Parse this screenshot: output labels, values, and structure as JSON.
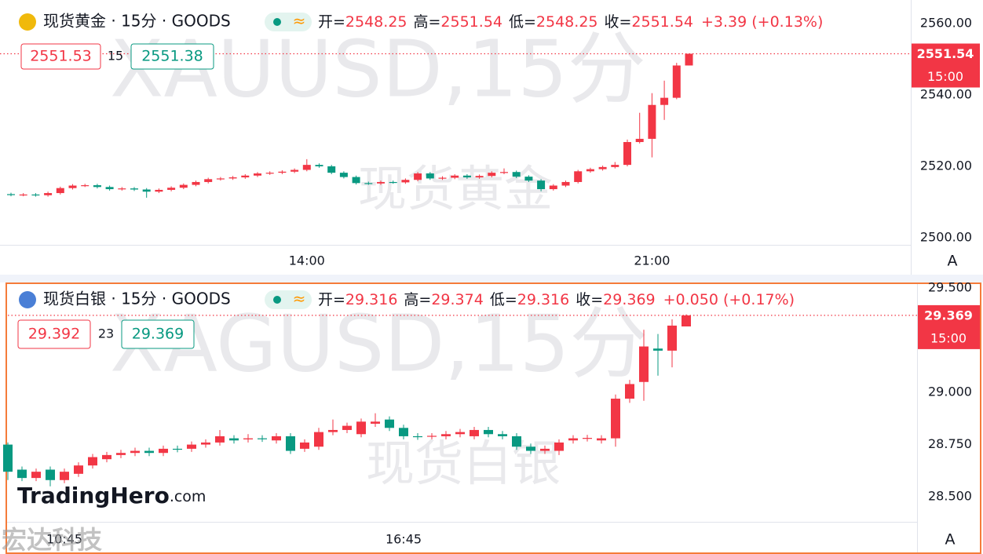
{
  "chart_data": [
    {
      "type": "candlestick",
      "title": "现货黄金 · 15分 · GOODS",
      "badge": "≈",
      "ohlc_labels": [
        "开=",
        "高=",
        "低=",
        "收="
      ],
      "change_label": "+3.39 (+0.13%)",
      "bid": 2551.53,
      "spread": 15,
      "ask": 2551.38,
      "watermark": "XAUUSD,15分",
      "watermark_sub": "现货黄金",
      "countdown": "15:00",
      "scale_button": "A",
      "up_color": "#f23645",
      "down_color": "#089981",
      "ylim": [
        2498.0,
        2566.6
      ],
      "yticks": [
        {
          "value": 2560,
          "label": "2560.00"
        },
        {
          "value": 2540,
          "label": "2540.00"
        },
        {
          "value": 2520,
          "label": "2520.00"
        },
        {
          "value": 2500,
          "label": "2500.00"
        }
      ],
      "categories": [
        null,
        null,
        null,
        null,
        null,
        null,
        null,
        null,
        null,
        null,
        null,
        null,
        null,
        null,
        null,
        null,
        null,
        null,
        null,
        null,
        null,
        null,
        null,
        null,
        "14:00",
        null,
        null,
        null,
        null,
        null,
        null,
        null,
        null,
        null,
        null,
        null,
        null,
        null,
        null,
        null,
        null,
        null,
        null,
        null,
        null,
        null,
        null,
        null,
        null,
        null,
        null,
        null,
        "21:00",
        null,
        null,
        null
      ],
      "open": [
        2512.2,
        2512.0,
        2512.1,
        2511.9,
        2512.5,
        2513.9,
        2514.6,
        2514.7,
        2514.2,
        2513.6,
        2513.8,
        2513.5,
        2512.9,
        2513.4,
        2514.0,
        2514.8,
        2515.6,
        2516.4,
        2516.6,
        2516.9,
        2517.4,
        2518.0,
        2518.2,
        2518.5,
        2519.0,
        2520.4,
        2520.0,
        2518.2,
        2517.0,
        2515.3,
        2515.2,
        2515.6,
        2515.5,
        2516.2,
        2518.0,
        2516.6,
        2516.8,
        2517.4,
        2516.9,
        2517.3,
        2518.2,
        2518.4,
        2517.1,
        2516.0,
        2513.6,
        2514.6,
        2515.6,
        2518.6,
        2519.2,
        2519.8,
        2520.4,
        2526.8,
        2527.7,
        2537.2,
        2539.2,
        2548.25
      ],
      "high": [
        2512.6,
        2512.5,
        2512.5,
        2512.9,
        2514.3,
        2515.0,
        2515.1,
        2515.1,
        2514.6,
        2514.2,
        2514.2,
        2513.9,
        2513.8,
        2514.4,
        2515.2,
        2516.0,
        2516.8,
        2517.0,
        2517.3,
        2517.8,
        2518.4,
        2518.6,
        2518.9,
        2519.4,
        2522.0,
        2520.8,
        2520.4,
        2518.6,
        2517.4,
        2515.7,
        2516.0,
        2516.0,
        2516.6,
        2518.4,
        2518.4,
        2517.2,
        2517.8,
        2517.8,
        2517.7,
        2518.6,
        2519.4,
        2518.8,
        2517.5,
        2516.4,
        2515.0,
        2516.0,
        2519.0,
        2519.6,
        2520.2,
        2521.2,
        2527.5,
        2535.0,
        2540.5,
        2544.0,
        2549.0,
        2551.54
      ],
      "low": [
        2511.6,
        2511.6,
        2511.5,
        2511.5,
        2512.1,
        2513.5,
        2514.2,
        2513.8,
        2513.2,
        2513.2,
        2513.1,
        2511.2,
        2512.5,
        2513.0,
        2513.6,
        2514.4,
        2515.2,
        2516.0,
        2516.2,
        2516.5,
        2517.0,
        2517.6,
        2517.8,
        2518.1,
        2518.6,
        2519.6,
        2517.8,
        2516.6,
        2514.9,
        2514.8,
        2514.8,
        2515.1,
        2515.1,
        2515.8,
        2516.2,
        2516.2,
        2516.4,
        2516.5,
        2516.5,
        2516.9,
        2517.8,
        2516.7,
        2515.6,
        2513.0,
        2513.2,
        2514.2,
        2515.2,
        2518.2,
        2518.8,
        2519.4,
        2520.0,
        2526.4,
        2522.5,
        2533.0,
        2538.8,
        2548.25
      ],
      "close": [
        2512.0,
        2512.1,
        2511.9,
        2512.5,
        2513.9,
        2514.6,
        2514.7,
        2514.2,
        2513.6,
        2513.8,
        2513.5,
        2512.9,
        2513.4,
        2514.0,
        2514.8,
        2515.6,
        2516.4,
        2516.6,
        2516.9,
        2517.4,
        2518.0,
        2518.2,
        2518.5,
        2519.0,
        2520.4,
        2520.0,
        2518.2,
        2517.0,
        2515.3,
        2515.2,
        2515.6,
        2515.5,
        2516.2,
        2518.0,
        2516.6,
        2516.8,
        2517.4,
        2516.9,
        2517.3,
        2518.2,
        2518.4,
        2517.1,
        2516.0,
        2513.6,
        2514.6,
        2515.6,
        2518.6,
        2519.2,
        2519.8,
        2520.4,
        2526.8,
        2527.7,
        2537.2,
        2539.2,
        2548.25,
        2551.54
      ]
    },
    {
      "type": "candlestick",
      "title": "现货白银 · 15分 · GOODS",
      "badge": "≈",
      "ohlc_labels": [
        "开=",
        "高=",
        "低=",
        "收="
      ],
      "change_label": "+0.050 (+0.17%)",
      "bid": 29.392,
      "spread": 23,
      "ask": 29.369,
      "watermark": "XAGUSD,15分",
      "watermark_sub": "现货白银",
      "countdown": "15:00",
      "scale_button": "A",
      "up_color": "#f23645",
      "down_color": "#089981",
      "ylim": [
        28.38,
        29.519
      ],
      "yticks": [
        {
          "value": 29.5,
          "label": "29.500"
        },
        {
          "value": 29,
          "label": "29.000"
        },
        {
          "value": 28.75,
          "label": "28.750"
        },
        {
          "value": 28.5,
          "label": "28.500"
        }
      ],
      "categories": [
        null,
        null,
        null,
        null,
        "10:45",
        null,
        null,
        null,
        null,
        null,
        null,
        null,
        null,
        null,
        null,
        null,
        null,
        null,
        null,
        null,
        null,
        null,
        null,
        null,
        null,
        null,
        null,
        null,
        "16:45",
        null,
        null,
        null,
        null,
        null,
        null,
        null,
        null,
        null,
        null,
        null,
        null,
        null,
        null,
        null,
        null,
        null,
        null,
        null,
        null
      ],
      "open": [
        28.75,
        28.63,
        28.59,
        28.63,
        28.58,
        28.61,
        28.65,
        28.68,
        28.7,
        28.71,
        28.72,
        28.71,
        28.73,
        28.73,
        28.75,
        28.76,
        28.78,
        28.775,
        28.78,
        28.77,
        28.79,
        28.73,
        28.74,
        28.81,
        28.82,
        28.8,
        28.85,
        28.87,
        28.83,
        28.79,
        28.79,
        28.79,
        28.8,
        28.79,
        28.82,
        28.8,
        28.79,
        28.74,
        28.72,
        28.72,
        28.77,
        28.78,
        28.77,
        28.78,
        28.97,
        29.05,
        29.21,
        29.2,
        29.316
      ],
      "high": [
        28.76,
        28.645,
        28.635,
        28.645,
        28.635,
        28.665,
        28.705,
        28.715,
        28.725,
        28.735,
        28.735,
        28.745,
        28.745,
        28.765,
        28.775,
        28.82,
        28.795,
        28.8,
        28.795,
        28.805,
        28.805,
        28.775,
        28.83,
        28.87,
        28.855,
        28.875,
        28.9,
        28.885,
        28.845,
        28.805,
        28.805,
        28.815,
        28.825,
        28.835,
        28.835,
        28.815,
        28.805,
        28.755,
        28.745,
        28.775,
        28.795,
        28.797,
        28.795,
        28.99,
        29.06,
        29.3,
        29.28,
        29.35,
        29.374
      ],
      "low": [
        28.58,
        28.575,
        28.575,
        28.55,
        28.565,
        28.595,
        28.635,
        28.665,
        28.685,
        28.695,
        28.695,
        28.695,
        28.713,
        28.715,
        28.735,
        28.745,
        28.755,
        28.76,
        28.763,
        28.755,
        28.705,
        28.715,
        28.725,
        28.795,
        28.805,
        28.785,
        28.835,
        28.815,
        28.775,
        28.773,
        28.775,
        28.775,
        28.785,
        28.775,
        28.785,
        28.775,
        28.725,
        28.705,
        28.705,
        28.7,
        28.755,
        28.765,
        28.755,
        28.74,
        28.95,
        28.96,
        29.08,
        29.12,
        29.316
      ],
      "close": [
        28.62,
        28.59,
        28.62,
        28.58,
        28.62,
        28.65,
        28.69,
        28.7,
        28.71,
        28.72,
        28.71,
        28.73,
        28.728,
        28.75,
        28.76,
        28.79,
        28.77,
        28.78,
        28.778,
        28.79,
        28.72,
        28.76,
        28.81,
        28.82,
        28.84,
        28.86,
        28.86,
        28.83,
        28.79,
        28.788,
        28.792,
        28.8,
        28.81,
        28.82,
        28.8,
        28.79,
        28.74,
        28.72,
        28.73,
        28.76,
        28.78,
        28.782,
        28.78,
        28.97,
        29.04,
        29.22,
        29.2,
        29.32,
        29.369
      ]
    }
  ],
  "logo": [
    "TradingHero",
    ".com"
  ],
  "corner_watermark": "宏达科技"
}
